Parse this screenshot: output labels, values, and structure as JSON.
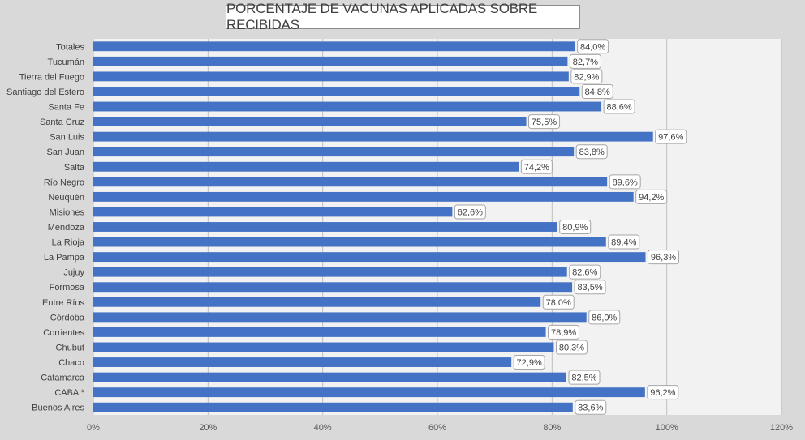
{
  "chart_data": {
    "type": "bar",
    "orientation": "horizontal",
    "title": "PORCENTAJE DE VACUNAS APLICADAS SOBRE RECIBIDAS",
    "categories": [
      "Totales",
      "Tucumán",
      "Tierra del Fuego",
      "Santiago del Estero",
      "Santa Fe",
      "Santa Cruz",
      "San Luis",
      "San Juan",
      "Salta",
      "Río Negro",
      "Neuquén",
      "Misiones",
      "Mendoza",
      "La Rioja",
      "La Pampa",
      "Jujuy",
      "Formosa",
      "Entre Ríos",
      "Córdoba",
      "Corrientes",
      "Chubut",
      "Chaco",
      "Catamarca",
      "CABA *",
      "Buenos Aires"
    ],
    "values": [
      84.0,
      82.7,
      82.9,
      84.8,
      88.6,
      75.5,
      97.6,
      83.8,
      74.2,
      89.6,
      94.2,
      62.6,
      80.9,
      89.4,
      96.3,
      82.6,
      83.5,
      78.0,
      86.0,
      78.9,
      80.3,
      72.9,
      82.5,
      96.2,
      83.6
    ],
    "data_labels": [
      "84,0%",
      "82,7%",
      "82,9%",
      "84,8%",
      "88,6%",
      "75,5%",
      "97,6%",
      "83,8%",
      "74,2%",
      "89,6%",
      "94,2%",
      "62,6%",
      "80,9%",
      "89,4%",
      "96,3%",
      "82,6%",
      "83,5%",
      "78,0%",
      "86,0%",
      "78,9%",
      "80,3%",
      "72,9%",
      "82,5%",
      "96,2%",
      "83,6%"
    ],
    "xlim": [
      0,
      120
    ],
    "xticks": [
      0,
      20,
      40,
      60,
      80,
      100,
      120
    ],
    "xtick_labels": [
      "0%",
      "20%",
      "40%",
      "60%",
      "80%",
      "100%",
      "120%"
    ],
    "xlabel": "",
    "ylabel": "",
    "grid": true,
    "legend": "none",
    "colors": {
      "bar": "#4472c4",
      "plot_background": "#f2f2f2",
      "gridline": "#bfbfbf",
      "page_background": "#d9d9d9",
      "label_box_border": "#a6a6a6"
    }
  }
}
